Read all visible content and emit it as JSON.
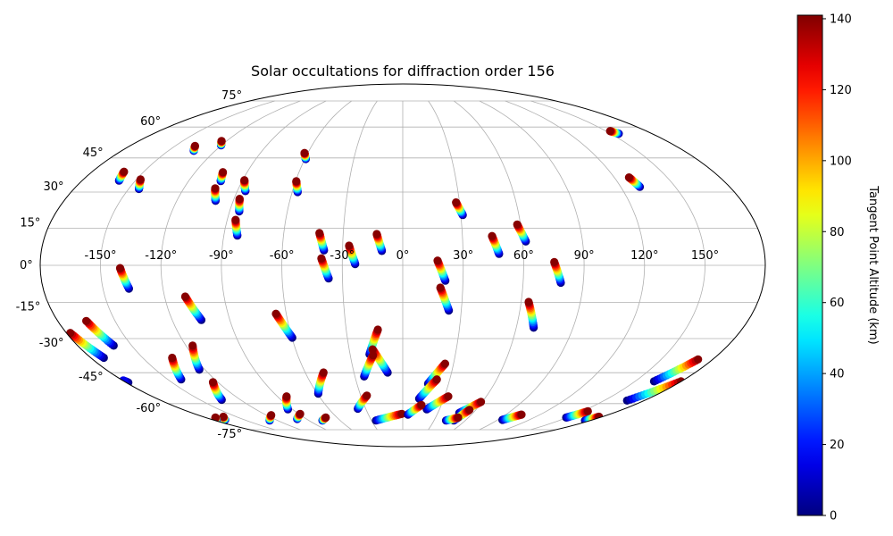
{
  "chart_data": {
    "type": "scatter",
    "projection": "mollweide",
    "title": "Solar occultations for diffraction order 156",
    "xlabel": "",
    "ylabel": "",
    "grid": true,
    "lon_ticks": [
      "-150°",
      "-120°",
      "-90°",
      "-60°",
      "-30°",
      "0°",
      "30°",
      "60°",
      "90°",
      "120°",
      "150°"
    ],
    "lon_tick_values": [
      -150,
      -120,
      -90,
      -60,
      -30,
      0,
      30,
      60,
      90,
      120,
      150
    ],
    "lat_ticks": [
      "-75°",
      "-60°",
      "-45°",
      "-30°",
      "-15°",
      "0°",
      "15°",
      "30°",
      "45°",
      "60°",
      "75°"
    ],
    "lat_tick_values": [
      -75,
      -60,
      -45,
      -30,
      -15,
      0,
      15,
      30,
      45,
      60,
      75
    ],
    "colormap": "jet",
    "colorbar": {
      "label": "Tangent Point Altitude (km)",
      "range": [
        0,
        141
      ],
      "ticks": [
        "0",
        "20",
        "40",
        "60",
        "80",
        "100",
        "120",
        "140"
      ],
      "tick_values": [
        0,
        20,
        40,
        60,
        80,
        100,
        120,
        140
      ],
      "placement": "right"
    },
    "track_note_units": "each track: start [lon, lat] at altitude 140 km, end [lon, lat] at 0 km unless alt given",
    "tracks": [
      {
        "start": [
          -161.5,
          38.8
        ],
        "end": [
          -159.2,
          34.9
        ]
      },
      {
        "start": [
          -147.7,
          35.4
        ],
        "end": [
          -144.3,
          31.3
        ]
      },
      {
        "start": [
          -136.9,
          50.6
        ],
        "end": [
          -133.7,
          48.3
        ]
      },
      {
        "start": [
          -123.5,
          53.0
        ],
        "end": [
          -120.2,
          50.9
        ]
      },
      {
        "start": [
          -104.0,
          38.6
        ],
        "end": [
          -102.0,
          34.7
        ]
      },
      {
        "start": [
          -102.8,
          31.6
        ],
        "end": [
          -99.4,
          26.3
        ]
      },
      {
        "start": [
          -89.0,
          35.1
        ],
        "end": [
          -85.6,
          30.4
        ]
      },
      {
        "start": [
          -87.0,
          27.1
        ],
        "end": [
          -85.0,
          21.9
        ]
      },
      {
        "start": [
          -85.7,
          18.4
        ],
        "end": [
          -83.2,
          12.0
        ]
      },
      {
        "start": [
          -62.1,
          47.3
        ],
        "end": [
          -59.4,
          44.5
        ]
      },
      {
        "start": [
          -59.6,
          34.6
        ],
        "end": [
          -57.0,
          30.0
        ]
      },
      {
        "start": [
          -42.0,
          13.0
        ],
        "end": [
          -39.2,
          6.0
        ]
      },
      {
        "start": [
          -40.4,
          2.8
        ],
        "end": [
          -36.9,
          -5.3
        ]
      },
      {
        "start": [
          -26.8,
          7.9
        ],
        "end": [
          -23.6,
          0.5
        ]
      },
      {
        "start": [
          -13.1,
          12.6
        ],
        "end": [
          -10.4,
          5.8
        ]
      },
      {
        "start": [
          28.2,
          25.6
        ],
        "end": [
          31.0,
          20.4
        ]
      },
      {
        "start": [
          44.9,
          11.8
        ],
        "end": [
          47.9,
          4.6
        ]
      },
      {
        "start": [
          58.3,
          16.5
        ],
        "end": [
          61.6,
          9.6
        ]
      },
      {
        "start": [
          75.2,
          1.3
        ],
        "end": [
          78.8,
          -7.0
        ]
      },
      {
        "start": [
          17.3,
          1.9
        ],
        "end": [
          21.2,
          -6.2
        ]
      },
      {
        "start": [
          18.8,
          -9.0
        ],
        "end": [
          23.6,
          -18.3
        ]
      },
      {
        "start": [
          153.0,
          57.9
        ],
        "end": [
          155.8,
          56.6
        ]
      },
      {
        "start": [
          128.4,
          36.3
        ],
        "end": [
          130.5,
          32.2
        ]
      },
      {
        "start": [
          -140.3,
          -1.1
        ],
        "end": [
          -137.0,
          -9.4
        ]
      },
      {
        "start": [
          -109.6,
          -12.6
        ],
        "end": [
          -104.8,
          -22.2
        ]
      },
      {
        "start": [
          -165.0,
          -22.6
        ],
        "end": [
          -160.0,
          -33.0
        ]
      },
      {
        "start": [
          -177.8,
          -27.6
        ],
        "end": [
          -172.4,
          -38.3
        ]
      },
      {
        "start": [
          -179.5,
          -48.6
        ],
        "end": [
          -178.5,
          -49.6
        ],
        "alt": [
          15,
          0
        ]
      },
      {
        "start": [
          -65.3,
          -19.6
        ],
        "end": [
          -59.8,
          -29.6
        ]
      },
      {
        "start": [
          -133.0,
          -38.3
        ],
        "end": [
          -141.4,
          -48.1
        ]
      },
      {
        "start": [
          -116.3,
          -33.0
        ],
        "end": [
          -123.4,
          -43.6
        ]
      },
      {
        "start": [
          -123.1,
          -49.4
        ],
        "end": [
          -133.8,
          -58.0
        ]
      },
      {
        "start": [
          -48.7,
          -44.9
        ],
        "end": [
          -59.3,
          -54.9
        ]
      },
      {
        "start": [
          -83.4,
          -56.3
        ],
        "end": [
          -93.7,
          -63.0
        ]
      },
      {
        "start": [
          -13.2,
          -26.2
        ],
        "end": [
          -18.9,
          -36.7
        ]
      },
      {
        "start": [
          -16.9,
          -34.6
        ],
        "end": [
          -9.3,
          -44.9
        ]
      },
      {
        "start": [
          -17.0,
          -37.2
        ],
        "end": [
          -24.2,
          -46.7
        ]
      },
      {
        "start": [
          -25.6,
          -55.9
        ],
        "end": [
          -36.4,
          -62.7
        ]
      },
      {
        "start": [
          -161.6,
          -67.1
        ],
        "end": [
          -168.2,
          -68.9
        ]
      },
      {
        "start": [
          -171.0,
          -67.6
        ],
        "end": [
          -176.4,
          -68.9
        ]
      },
      {
        "start": [
          -115.7,
          -66.2
        ],
        "end": [
          -127.5,
          -69.3
        ]
      },
      {
        "start": [
          -88.7,
          -65.5
        ],
        "end": [
          -98.5,
          -68.4
        ]
      },
      {
        "start": [
          -70.3,
          -67.6
        ],
        "end": [
          -76.9,
          -69.3
        ]
      },
      {
        "start": [
          63.8,
          -14.8
        ],
        "end": [
          69.2,
          -25.4
        ]
      },
      {
        "start": [
          25.0,
          -40.9
        ],
        "end": [
          16.6,
          -50.1
        ]
      },
      {
        "start": [
          21.8,
          -48.1
        ],
        "end": [
          12.0,
          -57.4
        ]
      },
      {
        "start": [
          32.7,
          -56.3
        ],
        "end": [
          19.6,
          -63.0
        ]
      },
      {
        "start": [
          59.0,
          -59.1
        ],
        "end": [
          48.3,
          -65.0
        ]
      },
      {
        "start": [
          54.8,
          -63.3
        ],
        "end": [
          48.9,
          -69.3
        ]
      },
      {
        "start": [
          -0.8,
          -65.5
        ],
        "end": [
          -25.7,
          -69.3
        ]
      },
      {
        "start": [
          14.5,
          -60.7
        ],
        "end": [
          4.5,
          -65.9
        ]
      },
      {
        "start": [
          50.6,
          -67.6
        ],
        "end": [
          41.5,
          -69.3
        ]
      },
      {
        "start": [
          103.7,
          -65.9
        ],
        "end": [
          94.4,
          -68.9
        ]
      },
      {
        "start": [
          154.8,
          -64.1
        ],
        "end": [
          149.2,
          -67.6
        ]
      },
      {
        "start": [
          176.8,
          -67.1
        ],
        "end": [
          174.6,
          -69.3
        ]
      },
      {
        "start": [
          171.4,
          -39.0
        ],
        "end": [
          162.2,
          -49.0
        ]
      },
      {
        "start": [
          179.6,
          -49.0
        ],
        "end": [
          167.0,
          -58.4
        ]
      }
    ]
  }
}
